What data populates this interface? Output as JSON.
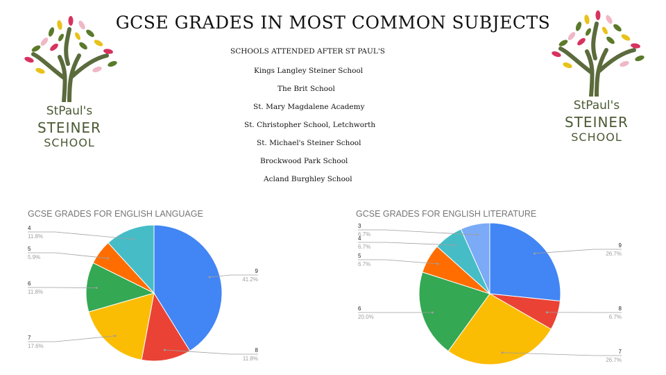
{
  "page_title": "GCSE GRADES IN MOST COMMON SUBJECTS",
  "schools": {
    "heading": "SCHOOLS  ATTENDED AFTER ST PAUL'S",
    "items": [
      "Kings Langley Steiner School",
      "The Brit School",
      "St. Mary Magdalene Academy",
      "St. Christopher School, Letchworth",
      "St. Michael's Steiner School",
      "Brockwood Park School",
      "Acland Burghley School"
    ]
  },
  "logo": {
    "line1": "StPaul's",
    "line2": "STEINER",
    "line3": "SCHOOL"
  },
  "colors": {
    "9": "#4285f4",
    "8": "#ea4335",
    "7": "#fbbc04",
    "6": "#34a853",
    "5": "#ff6d01",
    "4": "#46bdc6",
    "3": "#7baaf7"
  },
  "chart_data": [
    {
      "type": "pie",
      "title": "GCSE GRADES FOR ENGLISH LANGUAGE",
      "slices": [
        {
          "label": "9",
          "value": 41.2,
          "pct": "41.2%"
        },
        {
          "label": "8",
          "value": 11.8,
          "pct": "11.8%"
        },
        {
          "label": "7",
          "value": 17.6,
          "pct": "17.6%"
        },
        {
          "label": "6",
          "value": 11.8,
          "pct": "11.8%"
        },
        {
          "label": "5",
          "value": 5.9,
          "pct": "5.9%"
        },
        {
          "label": "4",
          "value": 11.8,
          "pct": "11.8%"
        }
      ]
    },
    {
      "type": "pie",
      "title": "GCSE GRADES FOR ENGLISH LITERATURE",
      "slices": [
        {
          "label": "9",
          "value": 26.7,
          "pct": "26.7%"
        },
        {
          "label": "8",
          "value": 6.7,
          "pct": "6.7%"
        },
        {
          "label": "7",
          "value": 26.7,
          "pct": "26.7%"
        },
        {
          "label": "6",
          "value": 20.0,
          "pct": "20.0%"
        },
        {
          "label": "5",
          "value": 6.7,
          "pct": "6.7%"
        },
        {
          "label": "4",
          "value": 6.7,
          "pct": "6.7%"
        },
        {
          "label": "3",
          "value": 6.7,
          "pct": "6.7%"
        }
      ]
    }
  ]
}
